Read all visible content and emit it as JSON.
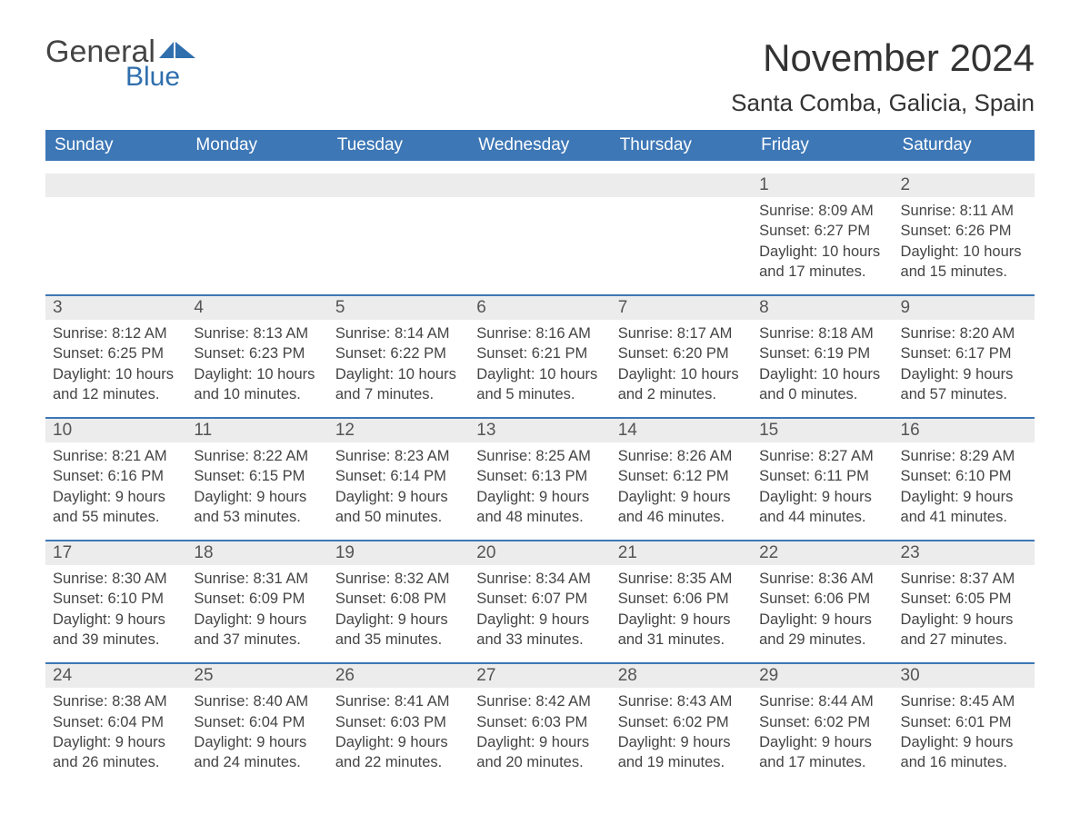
{
  "brand": {
    "word1": "General",
    "word2": "Blue"
  },
  "header": {
    "month_title": "November 2024",
    "location": "Santa Comba, Galicia, Spain"
  },
  "colors": {
    "primary": "#3d77b6",
    "strip_bg": "#ececec",
    "text": "#444444",
    "title": "#333333",
    "background": "#ffffff"
  },
  "weekdays": [
    "Sunday",
    "Monday",
    "Tuesday",
    "Wednesday",
    "Thursday",
    "Friday",
    "Saturday"
  ],
  "weeks": [
    [
      {
        "blank": true
      },
      {
        "blank": true
      },
      {
        "blank": true
      },
      {
        "blank": true
      },
      {
        "blank": true
      },
      {
        "day": "1",
        "sunrise": "8:09 AM",
        "sunset": "6:27 PM",
        "daylight": "10 hours and 17 minutes."
      },
      {
        "day": "2",
        "sunrise": "8:11 AM",
        "sunset": "6:26 PM",
        "daylight": "10 hours and 15 minutes."
      }
    ],
    [
      {
        "day": "3",
        "sunrise": "8:12 AM",
        "sunset": "6:25 PM",
        "daylight": "10 hours and 12 minutes."
      },
      {
        "day": "4",
        "sunrise": "8:13 AM",
        "sunset": "6:23 PM",
        "daylight": "10 hours and 10 minutes."
      },
      {
        "day": "5",
        "sunrise": "8:14 AM",
        "sunset": "6:22 PM",
        "daylight": "10 hours and 7 minutes."
      },
      {
        "day": "6",
        "sunrise": "8:16 AM",
        "sunset": "6:21 PM",
        "daylight": "10 hours and 5 minutes."
      },
      {
        "day": "7",
        "sunrise": "8:17 AM",
        "sunset": "6:20 PM",
        "daylight": "10 hours and 2 minutes."
      },
      {
        "day": "8",
        "sunrise": "8:18 AM",
        "sunset": "6:19 PM",
        "daylight": "10 hours and 0 minutes."
      },
      {
        "day": "9",
        "sunrise": "8:20 AM",
        "sunset": "6:17 PM",
        "daylight": "9 hours and 57 minutes."
      }
    ],
    [
      {
        "day": "10",
        "sunrise": "8:21 AM",
        "sunset": "6:16 PM",
        "daylight": "9 hours and 55 minutes."
      },
      {
        "day": "11",
        "sunrise": "8:22 AM",
        "sunset": "6:15 PM",
        "daylight": "9 hours and 53 minutes."
      },
      {
        "day": "12",
        "sunrise": "8:23 AM",
        "sunset": "6:14 PM",
        "daylight": "9 hours and 50 minutes."
      },
      {
        "day": "13",
        "sunrise": "8:25 AM",
        "sunset": "6:13 PM",
        "daylight": "9 hours and 48 minutes."
      },
      {
        "day": "14",
        "sunrise": "8:26 AM",
        "sunset": "6:12 PM",
        "daylight": "9 hours and 46 minutes."
      },
      {
        "day": "15",
        "sunrise": "8:27 AM",
        "sunset": "6:11 PM",
        "daylight": "9 hours and 44 minutes."
      },
      {
        "day": "16",
        "sunrise": "8:29 AM",
        "sunset": "6:10 PM",
        "daylight": "9 hours and 41 minutes."
      }
    ],
    [
      {
        "day": "17",
        "sunrise": "8:30 AM",
        "sunset": "6:10 PM",
        "daylight": "9 hours and 39 minutes."
      },
      {
        "day": "18",
        "sunrise": "8:31 AM",
        "sunset": "6:09 PM",
        "daylight": "9 hours and 37 minutes."
      },
      {
        "day": "19",
        "sunrise": "8:32 AM",
        "sunset": "6:08 PM",
        "daylight": "9 hours and 35 minutes."
      },
      {
        "day": "20",
        "sunrise": "8:34 AM",
        "sunset": "6:07 PM",
        "daylight": "9 hours and 33 minutes."
      },
      {
        "day": "21",
        "sunrise": "8:35 AM",
        "sunset": "6:06 PM",
        "daylight": "9 hours and 31 minutes."
      },
      {
        "day": "22",
        "sunrise": "8:36 AM",
        "sunset": "6:06 PM",
        "daylight": "9 hours and 29 minutes."
      },
      {
        "day": "23",
        "sunrise": "8:37 AM",
        "sunset": "6:05 PM",
        "daylight": "9 hours and 27 minutes."
      }
    ],
    [
      {
        "day": "24",
        "sunrise": "8:38 AM",
        "sunset": "6:04 PM",
        "daylight": "9 hours and 26 minutes."
      },
      {
        "day": "25",
        "sunrise": "8:40 AM",
        "sunset": "6:04 PM",
        "daylight": "9 hours and 24 minutes."
      },
      {
        "day": "26",
        "sunrise": "8:41 AM",
        "sunset": "6:03 PM",
        "daylight": "9 hours and 22 minutes."
      },
      {
        "day": "27",
        "sunrise": "8:42 AM",
        "sunset": "6:03 PM",
        "daylight": "9 hours and 20 minutes."
      },
      {
        "day": "28",
        "sunrise": "8:43 AM",
        "sunset": "6:02 PM",
        "daylight": "9 hours and 19 minutes."
      },
      {
        "day": "29",
        "sunrise": "8:44 AM",
        "sunset": "6:02 PM",
        "daylight": "9 hours and 17 minutes."
      },
      {
        "day": "30",
        "sunrise": "8:45 AM",
        "sunset": "6:01 PM",
        "daylight": "9 hours and 16 minutes."
      }
    ]
  ],
  "labels": {
    "sunrise": "Sunrise:",
    "sunset": "Sunset:",
    "daylight": "Daylight:"
  }
}
